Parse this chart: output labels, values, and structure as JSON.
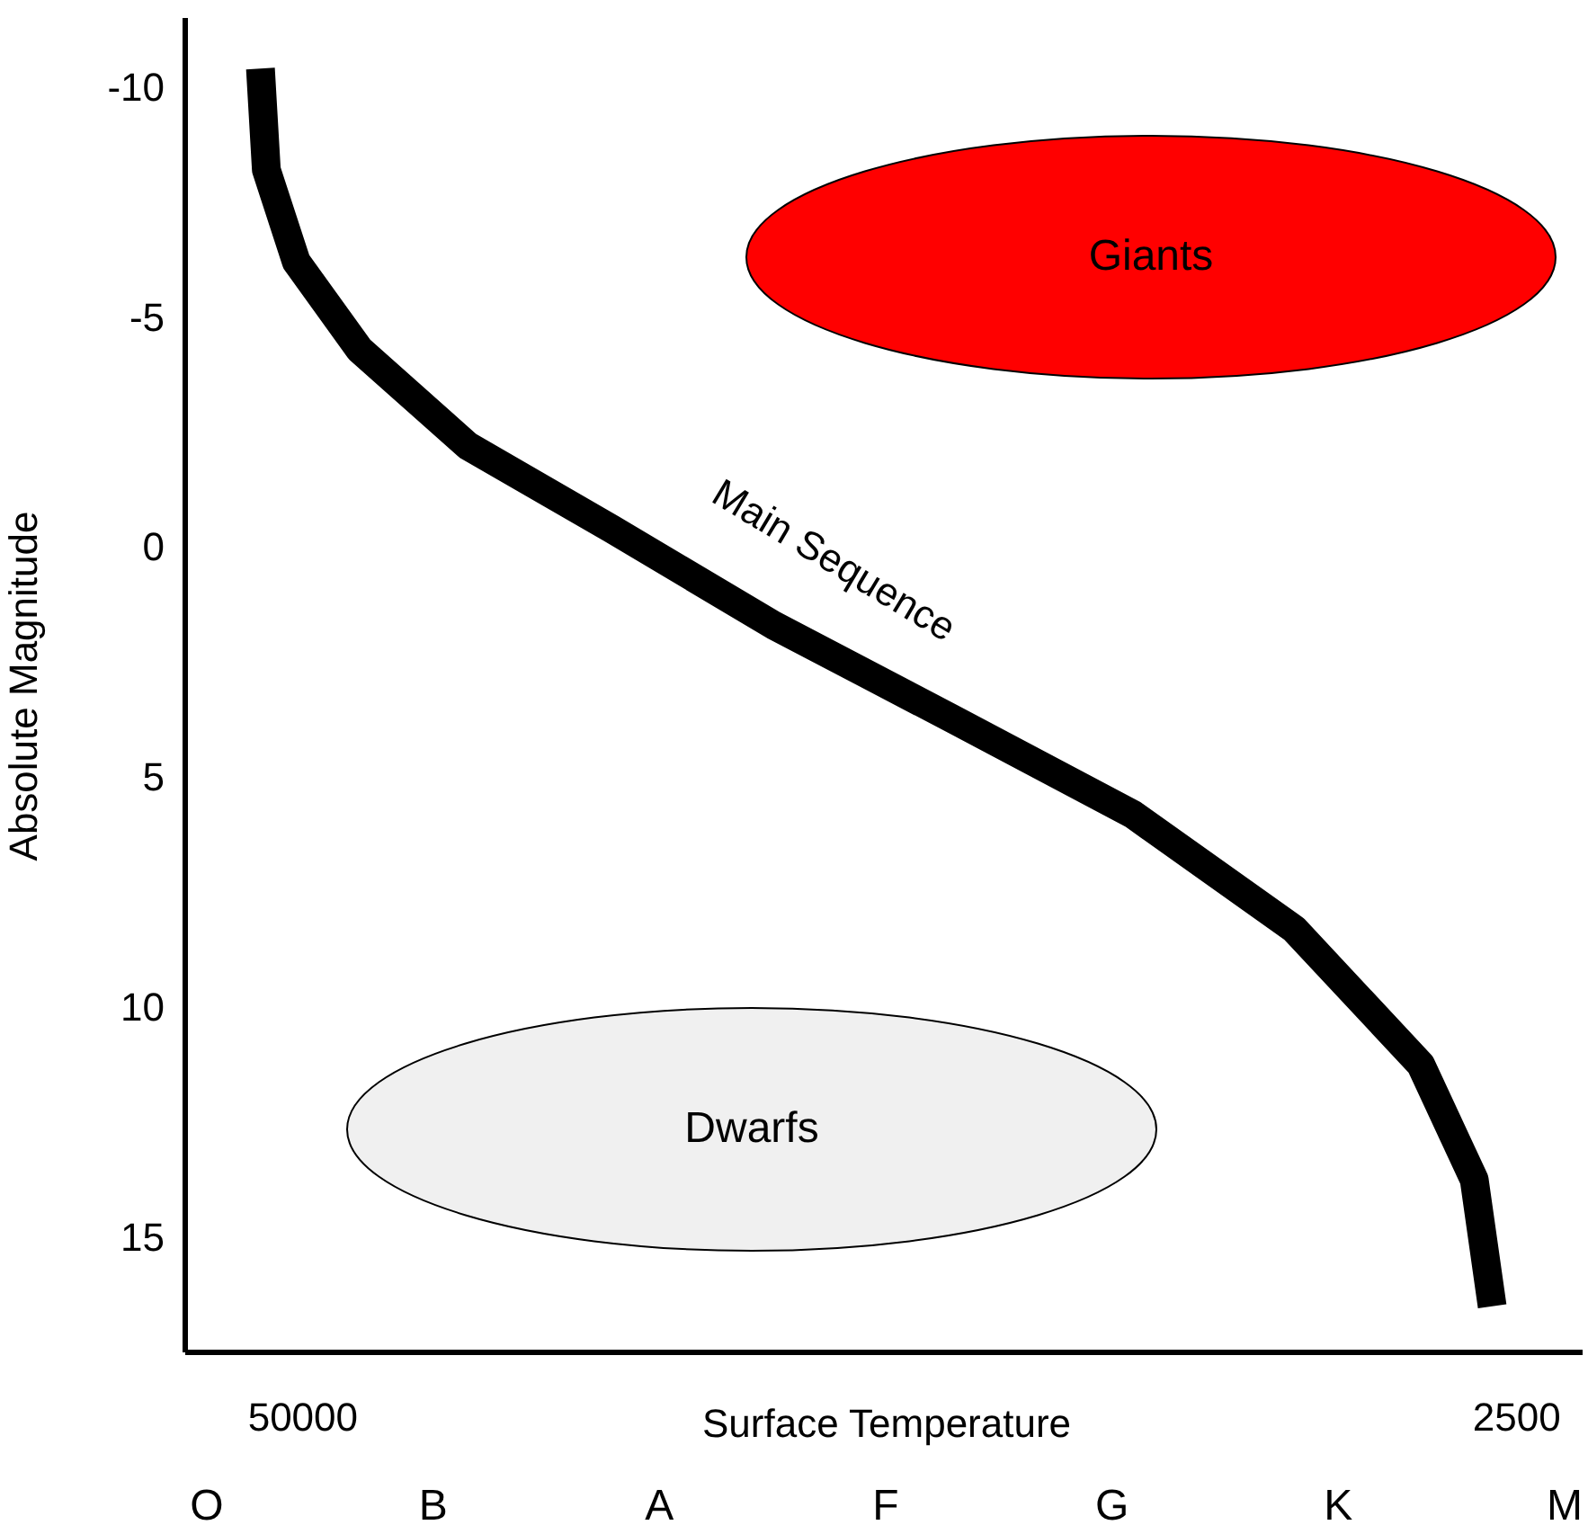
{
  "chart_data": {
    "type": "line",
    "xlabel": "Surface Temperature",
    "ylabel": "Absolute Magnitude",
    "log": "x",
    "xlim": [
      66700,
      2120
    ],
    "xticks": [
      50000,
      2500
    ],
    "ylim": [
      17.5,
      -11.5
    ],
    "yticks": [
      -10,
      -5,
      0,
      5,
      10,
      15
    ],
    "series": [
      {
        "name": "Main Sequence",
        "color": "#000000",
        "x": [
          55400,
          54600,
          50700,
          43400,
          33200,
          23300,
          15600,
          10000,
          6440,
          4320,
          3160,
          2770,
          2650
        ],
        "values": [
          -10.4,
          -8.2,
          -6.2,
          -4.3,
          -2.2,
          -0.4,
          1.7,
          3.75,
          5.8,
          8.3,
          11.25,
          13.75,
          16.5
        ]
      }
    ],
    "annotations": [
      "Giants",
      "Dwarfs",
      "O",
      "B",
      "A",
      "F",
      "G",
      "K",
      "M"
    ]
  }
}
